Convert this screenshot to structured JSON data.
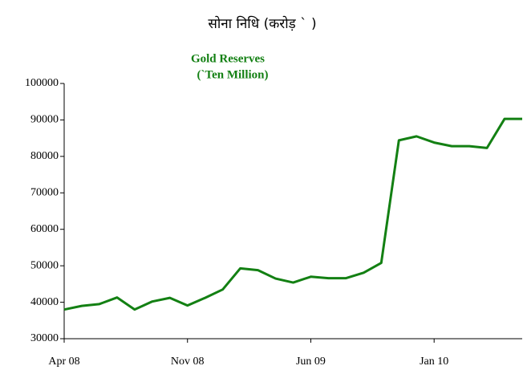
{
  "chart_data": {
    "type": "line",
    "title": "सोना निधि (करोड़ ` )",
    "subtitle": "Gold Reserves",
    "axis_label": "(`Ten Million)",
    "categories": [
      "Apr 08",
      null,
      null,
      null,
      null,
      null,
      null,
      "Nov 08",
      null,
      null,
      null,
      null,
      null,
      null,
      "Jun 09",
      null,
      null,
      null,
      null,
      null,
      null,
      "Jan 10",
      null,
      null,
      null,
      null,
      null
    ],
    "series": [
      {
        "name": "Gold Reserves",
        "color": "#138013",
        "values": [
          38000,
          39000,
          39500,
          41300,
          38000,
          40200,
          41200,
          39100,
          41200,
          43500,
          49300,
          48800,
          46500,
          45400,
          47000,
          46600,
          46600,
          48100,
          50800,
          84400,
          85500,
          83800,
          82800,
          82800,
          82300,
          90300,
          90300
        ]
      }
    ],
    "ylim": [
      30000,
      100000
    ],
    "yticks": [
      30000,
      40000,
      50000,
      60000,
      70000,
      80000,
      90000,
      100000
    ]
  }
}
